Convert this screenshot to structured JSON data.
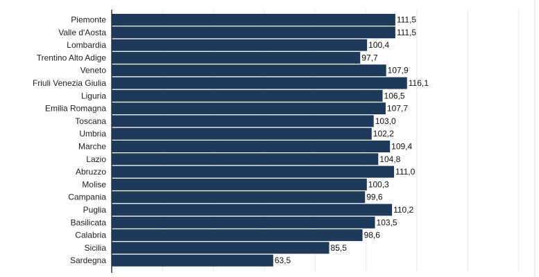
{
  "chart_data": {
    "type": "bar",
    "orientation": "horizontal",
    "title": "",
    "xlabel": "",
    "ylabel": "",
    "categories": [
      "Piemonte",
      "Valle d'Aosta",
      "Lombardia",
      "Trentino Alto Adige",
      "Veneto",
      "Friuli Venezia Giulia",
      "Liguria",
      "Emilia Romagna",
      "Toscana",
      "Umbria",
      "Marche",
      "Lazio",
      "Abruzzo",
      "Molise",
      "Campania",
      "Puglia",
      "Basilicata",
      "Calabria",
      "Sicilia",
      "Sardegna"
    ],
    "values": [
      111.5,
      111.5,
      100.4,
      97.7,
      107.9,
      116.1,
      106.5,
      107.7,
      103.0,
      102.2,
      109.4,
      104.8,
      111.0,
      100.3,
      99.6,
      110.2,
      103.5,
      98.6,
      85.5,
      63.5
    ],
    "value_labels": [
      "111,5",
      "111,5",
      "100,4",
      "97,7",
      "107,9",
      "116,1",
      "106,5",
      "107,7",
      "103,0",
      "102,2",
      "109,4",
      "104,8",
      "111,0",
      "100,3",
      "99,6",
      "110,2",
      "103,5",
      "98,6",
      "85,5",
      "63,5"
    ],
    "xlim": [
      0,
      160
    ],
    "grid": true,
    "legend": "none",
    "bar_color": "#1d3a5a"
  }
}
